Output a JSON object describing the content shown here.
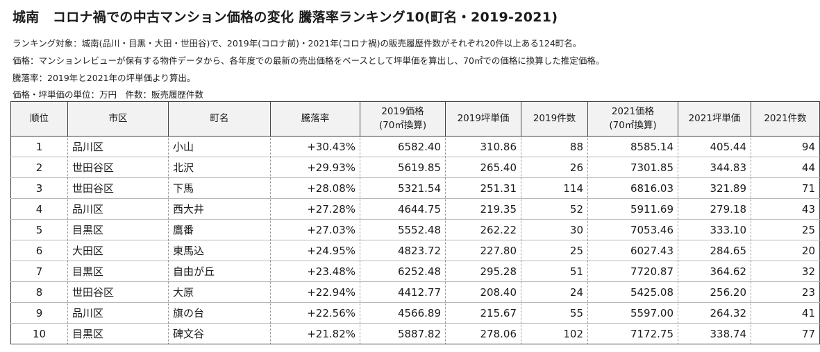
{
  "title": "城南　コロナ禍での中古マンション価格の変化 騰落率ランキング10(町名・2019-2021)",
  "notes": [
    "ランキング対象：城南(品川・目黒・大田・世田谷)で、2019年(コロナ前)・2021年(コロナ禍)の販売履歴件数がそれぞれ20件以上ある124町名。",
    "価格：マンションレビューが保有する物件データから、各年度での最新の売出価格をベースとして坪単価を算出し、70㎡での価格に換算した推定価格。",
    "騰落率：2019年と2021年の坪単価より算出。",
    "価格・坪単価の単位：万円　件数：販売履歴件数"
  ],
  "table": {
    "headers": [
      {
        "l1": "順位",
        "l2": ""
      },
      {
        "l1": "市区",
        "l2": ""
      },
      {
        "l1": "町名",
        "l2": ""
      },
      {
        "l1": "騰落率",
        "l2": ""
      },
      {
        "l1": "2019価格",
        "l2": "(70㎡換算)"
      },
      {
        "l1": "2019坪単価",
        "l2": ""
      },
      {
        "l1": "2019件数",
        "l2": ""
      },
      {
        "l1": "2021価格",
        "l2": "(70㎡換算)"
      },
      {
        "l1": "2021坪単価",
        "l2": ""
      },
      {
        "l1": "2021件数",
        "l2": ""
      }
    ],
    "rows": [
      [
        "1",
        "品川区",
        "小山",
        "+30.43%",
        "6582.40",
        "310.86",
        "88",
        "8585.14",
        "405.44",
        "94"
      ],
      [
        "2",
        "世田谷区",
        "北沢",
        "+29.93%",
        "5619.85",
        "265.40",
        "26",
        "7301.85",
        "344.83",
        "44"
      ],
      [
        "3",
        "世田谷区",
        "下馬",
        "+28.08%",
        "5321.54",
        "251.31",
        "114",
        "6816.03",
        "321.89",
        "71"
      ],
      [
        "4",
        "品川区",
        "西大井",
        "+27.28%",
        "4644.75",
        "219.35",
        "52",
        "5911.69",
        "279.18",
        "43"
      ],
      [
        "5",
        "目黒区",
        "鷹番",
        "+27.03%",
        "5552.48",
        "262.22",
        "30",
        "7053.46",
        "333.10",
        "25"
      ],
      [
        "6",
        "大田区",
        "東馬込",
        "+24.95%",
        "4823.72",
        "227.80",
        "25",
        "6027.43",
        "284.65",
        "20"
      ],
      [
        "7",
        "目黒区",
        "自由が丘",
        "+23.48%",
        "6252.48",
        "295.28",
        "51",
        "7720.87",
        "364.62",
        "32"
      ],
      [
        "8",
        "世田谷区",
        "大原",
        "+22.94%",
        "4412.77",
        "208.40",
        "24",
        "5425.08",
        "256.20",
        "23"
      ],
      [
        "9",
        "品川区",
        "旗の台",
        "+22.56%",
        "4566.89",
        "215.67",
        "55",
        "5597.00",
        "264.32",
        "41"
      ],
      [
        "10",
        "目黒区",
        "碑文谷",
        "+21.82%",
        "5887.82",
        "278.06",
        "102",
        "7172.75",
        "338.74",
        "77"
      ]
    ]
  }
}
